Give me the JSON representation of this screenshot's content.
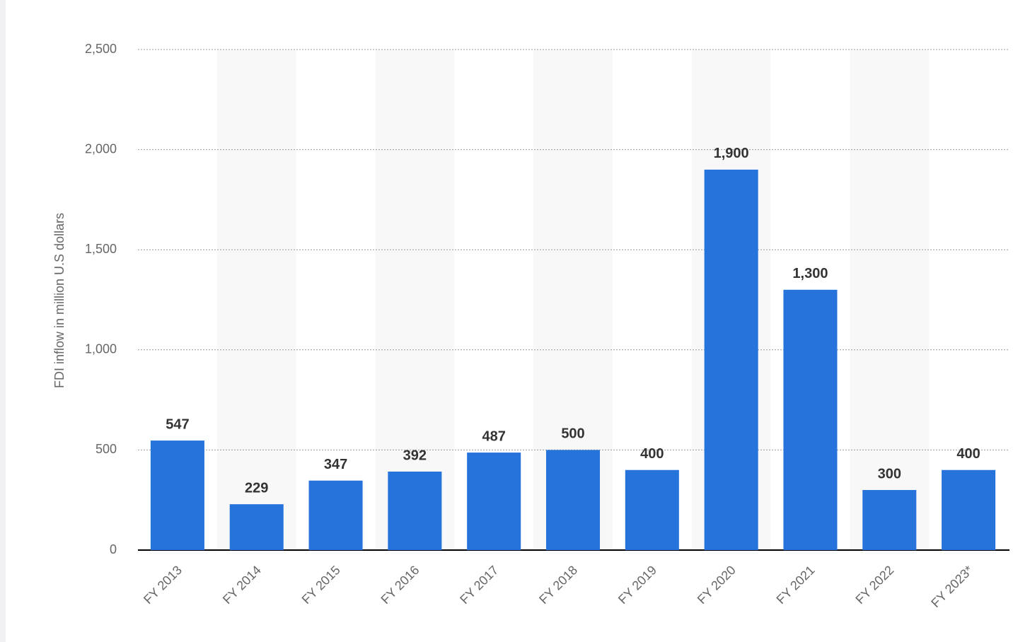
{
  "chart_data": {
    "type": "bar",
    "y_label": "FDI inflow in million U.S dollars",
    "categories": [
      "FY 2013",
      "FY 2014",
      "FY 2015",
      "FY 2016",
      "FY 2017",
      "FY 2018",
      "FY 2019",
      "FY 2020",
      "FY 2021",
      "FY 2022",
      "FY 2023*"
    ],
    "values": [
      547,
      229,
      347,
      392,
      487,
      500,
      400,
      1900,
      1300,
      300,
      400
    ],
    "value_labels": [
      "547",
      "229",
      "347",
      "392",
      "487",
      "500",
      "400",
      "1,900",
      "1,300",
      "300",
      "400"
    ],
    "color": "#2673db",
    "ylim": [
      0,
      2500
    ],
    "yticks": [
      0,
      500,
      {
        "value": 1000,
        "label": "1,000"
      },
      {
        "value": 1500,
        "label": "1,500"
      },
      {
        "value": 2000,
        "label": "2,000"
      },
      {
        "value": 2500,
        "label": "2,500"
      }
    ],
    "grid": true
  }
}
